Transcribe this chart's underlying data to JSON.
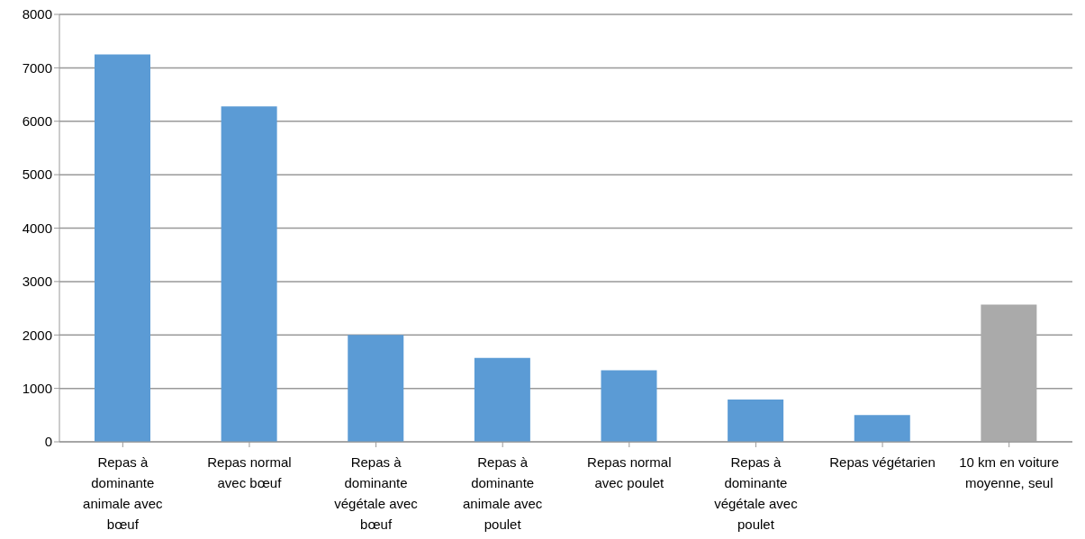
{
  "chart_data": {
    "type": "bar",
    "categories": [
      "Repas à dominante animale avec bœuf",
      "Repas normal avec bœuf",
      "Repas à dominante végétale avec bœuf",
      "Repas à dominante animale avec poulet",
      "Repas normal avec poulet",
      "Repas à dominante végétale avec poulet",
      "Repas végétarien",
      "10 km en voiture moyenne, seul"
    ],
    "values": [
      7250,
      6280,
      2000,
      1570,
      1340,
      790,
      500,
      2570
    ],
    "colors": [
      "#5b9bd5",
      "#5b9bd5",
      "#5b9bd5",
      "#5b9bd5",
      "#5b9bd5",
      "#5b9bd5",
      "#5b9bd5",
      "#aaaaaa"
    ],
    "ylim": [
      0,
      8000
    ],
    "yticks": [
      0,
      1000,
      2000,
      3000,
      4000,
      5000,
      6000,
      7000,
      8000
    ],
    "grid": "y"
  }
}
